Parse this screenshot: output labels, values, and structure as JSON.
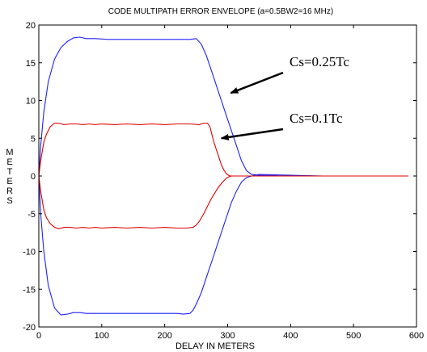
{
  "chart_data": {
    "type": "line",
    "title": "CODE MULTIPATH ERROR ENVELOPE (a=0.5BW2=16 MHz)",
    "xlabel": "DELAY IN METERS",
    "ylabel": "METERS",
    "xlim": [
      0,
      600
    ],
    "ylim": [
      -20,
      20
    ],
    "xticks": [
      0,
      100,
      200,
      300,
      400,
      500,
      600
    ],
    "yticks": [
      20,
      15,
      10,
      5,
      0,
      -5,
      -10,
      -15,
      -20
    ],
    "grid": false,
    "legend": "none",
    "annotations": [
      {
        "text": "Cs=0.25Tc",
        "points_to": [
          305,
          11
        ]
      },
      {
        "text": "Cs=0.1Tc",
        "points_to": [
          290,
          5
        ]
      }
    ],
    "series": [
      {
        "color": "#2020ff",
        "x": [
          0,
          3,
          8,
          15,
          25,
          35,
          45,
          55,
          65,
          75,
          90,
          110,
          130,
          160,
          190,
          220,
          240,
          250,
          258,
          266,
          274,
          282,
          290,
          298,
          306,
          314,
          322,
          330,
          338,
          350,
          400,
          450,
          500,
          587
        ],
        "values": [
          0,
          4,
          8.5,
          12.5,
          15.5,
          17,
          17.8,
          18.3,
          18.4,
          18.2,
          18.2,
          18.1,
          18.1,
          18.1,
          18.1,
          18.1,
          18.1,
          18.2,
          17.5,
          16,
          14,
          12,
          10,
          8,
          6,
          4,
          2,
          0.7,
          0.2,
          0.1,
          0,
          0,
          0,
          0
        ]
      },
      {
        "color": "#2020ff",
        "x": [
          0,
          3,
          8,
          15,
          25,
          35,
          45,
          55,
          65,
          75,
          90,
          110,
          130,
          160,
          190,
          220,
          230,
          240,
          245,
          250,
          258,
          266,
          274,
          282,
          290,
          298,
          306,
          314,
          322,
          330,
          338,
          350,
          400,
          450,
          500,
          587
        ],
        "values": [
          0,
          -5,
          -10,
          -14.5,
          -17.5,
          -18.4,
          -18.3,
          -18.1,
          -18.1,
          -18.2,
          -18.2,
          -18.2,
          -18.2,
          -18.2,
          -18.2,
          -18.2,
          -18.3,
          -18.2,
          -17.8,
          -17,
          -15.5,
          -13.5,
          -11.5,
          -9.5,
          -7.5,
          -5.5,
          -3.5,
          -2,
          -0.8,
          -0.2,
          0,
          0.2,
          0.1,
          0,
          0,
          0
        ]
      },
      {
        "color": "#dd0000",
        "x": [
          0,
          3,
          8,
          12,
          18,
          25,
          32,
          40,
          50,
          60,
          70,
          80,
          90,
          100,
          120,
          140,
          160,
          180,
          200,
          220,
          240,
          255,
          262,
          268,
          272,
          275,
          278,
          282,
          286,
          290,
          294,
          298,
          302,
          306,
          310,
          320,
          400,
          500,
          587
        ],
        "values": [
          0,
          2,
          4.5,
          5.5,
          6.5,
          7,
          7,
          6.8,
          6.9,
          6.9,
          6.8,
          6.9,
          6.8,
          6.9,
          6.8,
          6.9,
          6.8,
          6.9,
          6.8,
          6.9,
          6.9,
          6.8,
          7,
          7,
          6.5,
          5.5,
          4.5,
          3.5,
          2.5,
          1.5,
          0.8,
          0.3,
          0.05,
          0,
          0,
          0,
          0,
          0,
          0
        ]
      },
      {
        "color": "#dd0000",
        "x": [
          0,
          3,
          8,
          12,
          18,
          25,
          32,
          40,
          50,
          60,
          70,
          80,
          90,
          100,
          120,
          140,
          160,
          180,
          200,
          220,
          235,
          245,
          250,
          255,
          262,
          268,
          274,
          280,
          286,
          292,
          298,
          302,
          306,
          310,
          320,
          400,
          500,
          587
        ],
        "values": [
          0,
          -2,
          -4.5,
          -5.5,
          -6.3,
          -6.8,
          -7,
          -6.8,
          -6.8,
          -6.9,
          -6.8,
          -6.9,
          -6.8,
          -6.9,
          -6.8,
          -6.9,
          -6.8,
          -6.9,
          -6.8,
          -6.9,
          -6.9,
          -6.8,
          -6.5,
          -6,
          -5,
          -4,
          -3,
          -2.2,
          -1.4,
          -0.8,
          -0.3,
          -0.1,
          0,
          0,
          0,
          0,
          0,
          0
        ]
      }
    ]
  }
}
